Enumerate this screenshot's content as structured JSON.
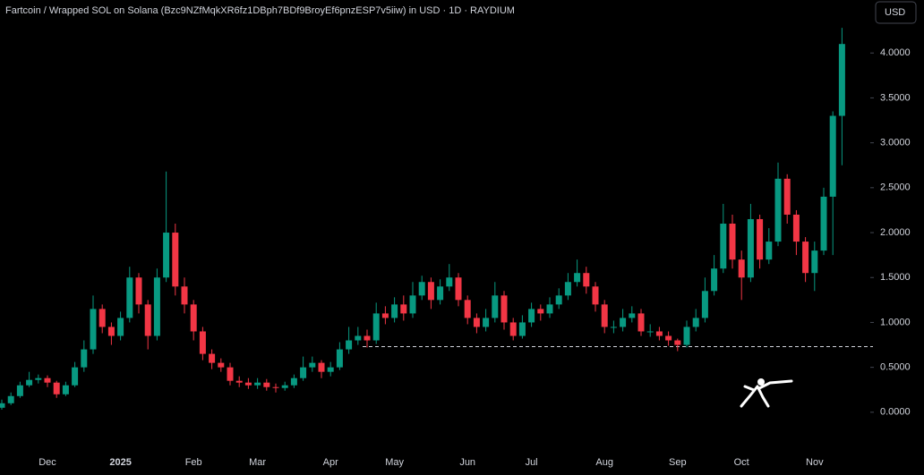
{
  "chart_data": {
    "type": "candlestick",
    "title": "Fartcoin / Wrapped SOL on Solana (Bzc9NZfMqkXR6fz1DBph7BDf9BroyEf6pnzESP7v5iiw) in USD · 1D · RAYDIUM",
    "currency": "USD",
    "up_color": "#089981",
    "down_color": "#f23645",
    "ylim": [
      -0.39,
      4.59
    ],
    "yticks": [
      {
        "value": 0,
        "label": "0.0000"
      },
      {
        "value": 0.5,
        "label": "0.5000"
      },
      {
        "value": 1,
        "label": "1.0000"
      },
      {
        "value": 1.5,
        "label": "1.5000"
      },
      {
        "value": 2,
        "label": "2.0000"
      },
      {
        "value": 2.5,
        "label": "2.5000"
      },
      {
        "value": 3,
        "label": "3.0000"
      },
      {
        "value": 3.5,
        "label": "3.5000"
      },
      {
        "value": 4,
        "label": "4.0000"
      }
    ],
    "price_line": 0.73,
    "categories": [
      null,
      null,
      null,
      null,
      null,
      "Dec",
      null,
      null,
      null,
      null,
      null,
      null,
      null,
      "2025",
      null,
      null,
      null,
      null,
      null,
      null,
      null,
      "Feb",
      null,
      null,
      null,
      null,
      null,
      null,
      "Mar",
      null,
      null,
      null,
      null,
      null,
      null,
      null,
      "Apr",
      null,
      null,
      null,
      null,
      null,
      null,
      "May",
      null,
      null,
      null,
      null,
      null,
      null,
      null,
      "Jun",
      null,
      null,
      null,
      null,
      null,
      null,
      "Jul",
      null,
      null,
      null,
      null,
      null,
      null,
      null,
      "Aug",
      null,
      null,
      null,
      null,
      null,
      null,
      null,
      "Sep",
      null,
      null,
      null,
      null,
      null,
      null,
      "Oct",
      null,
      null,
      null,
      null,
      null,
      null,
      null,
      "Nov",
      null,
      null,
      null
    ],
    "open": [
      0.05,
      0.1,
      0.18,
      0.3,
      0.36,
      0.38,
      0.33,
      0.2,
      0.3,
      0.5,
      0.7,
      1.15,
      0.95,
      0.85,
      1.05,
      1.5,
      1.2,
      0.85,
      1.5,
      2.0,
      1.4,
      1.2,
      0.9,
      0.65,
      0.55,
      0.5,
      0.35,
      0.33,
      0.3,
      0.33,
      0.28,
      0.27,
      0.3,
      0.38,
      0.5,
      0.55,
      0.45,
      0.5,
      0.7,
      0.8,
      0.85,
      0.8,
      1.1,
      1.05,
      1.2,
      1.1,
      1.3,
      1.45,
      1.25,
      1.4,
      1.5,
      1.25,
      1.05,
      0.95,
      1.05,
      1.3,
      1.0,
      0.85,
      1.0,
      1.15,
      1.1,
      1.2,
      1.3,
      1.45,
      1.55,
      1.4,
      1.2,
      0.95,
      0.95,
      1.05,
      1.1,
      0.9,
      0.9,
      0.85,
      0.8,
      0.75,
      0.95,
      1.05,
      1.35,
      1.6,
      2.1,
      1.7,
      1.5,
      2.15,
      1.7,
      1.9,
      2.6,
      2.2,
      1.9,
      1.55,
      1.8,
      2.4,
      3.3
    ],
    "high": [
      0.14,
      0.22,
      0.34,
      0.45,
      0.42,
      0.41,
      0.35,
      0.34,
      0.56,
      0.8,
      1.3,
      1.2,
      1.0,
      1.12,
      1.62,
      1.55,
      1.25,
      1.6,
      2.68,
      2.1,
      1.5,
      1.25,
      0.95,
      0.7,
      0.6,
      0.55,
      0.4,
      0.38,
      0.38,
      0.37,
      0.32,
      0.34,
      0.42,
      0.62,
      0.62,
      0.58,
      0.56,
      0.78,
      0.95,
      0.95,
      0.92,
      1.22,
      1.18,
      1.28,
      1.3,
      1.45,
      1.52,
      1.5,
      1.48,
      1.65,
      1.55,
      1.3,
      1.1,
      1.15,
      1.45,
      1.35,
      1.05,
      1.08,
      1.22,
      1.2,
      1.28,
      1.38,
      1.55,
      1.7,
      1.62,
      1.45,
      1.25,
      1.02,
      1.15,
      1.18,
      1.15,
      0.98,
      0.95,
      0.9,
      0.82,
      1.02,
      1.15,
      1.5,
      1.75,
      2.32,
      2.2,
      1.8,
      2.32,
      2.2,
      2.05,
      2.78,
      2.65,
      2.25,
      1.95,
      1.9,
      2.5,
      3.35,
      4.28
    ],
    "low": [
      0.03,
      0.08,
      0.16,
      0.28,
      0.32,
      0.28,
      0.16,
      0.18,
      0.28,
      0.45,
      0.65,
      0.88,
      0.75,
      0.8,
      1.0,
      1.1,
      0.7,
      0.8,
      1.45,
      1.3,
      1.1,
      0.8,
      0.58,
      0.48,
      0.45,
      0.3,
      0.28,
      0.26,
      0.26,
      0.24,
      0.22,
      0.24,
      0.27,
      0.35,
      0.45,
      0.38,
      0.4,
      0.47,
      0.65,
      0.75,
      0.72,
      0.76,
      0.98,
      1.0,
      1.02,
      1.05,
      1.25,
      1.15,
      1.2,
      1.35,
      1.18,
      0.98,
      0.88,
      0.9,
      1.0,
      0.92,
      0.8,
      0.82,
      0.95,
      1.02,
      1.05,
      1.15,
      1.25,
      1.4,
      1.32,
      1.12,
      0.88,
      0.88,
      0.9,
      1.0,
      0.85,
      0.84,
      0.8,
      0.74,
      0.68,
      0.72,
      0.9,
      1.0,
      1.3,
      1.55,
      1.6,
      1.25,
      1.45,
      1.6,
      1.65,
      1.85,
      2.1,
      1.75,
      1.45,
      1.35,
      1.75,
      1.75,
      2.75
    ],
    "close": [
      0.1,
      0.18,
      0.3,
      0.36,
      0.38,
      0.33,
      0.2,
      0.3,
      0.5,
      0.7,
      1.15,
      0.95,
      0.85,
      1.05,
      1.5,
      1.2,
      0.85,
      1.5,
      2.0,
      1.4,
      1.2,
      0.9,
      0.65,
      0.55,
      0.5,
      0.35,
      0.33,
      0.3,
      0.33,
      0.28,
      0.27,
      0.3,
      0.38,
      0.5,
      0.55,
      0.45,
      0.5,
      0.7,
      0.8,
      0.85,
      0.8,
      1.1,
      1.05,
      1.2,
      1.1,
      1.3,
      1.45,
      1.25,
      1.4,
      1.5,
      1.25,
      1.05,
      0.95,
      1.05,
      1.3,
      1.0,
      0.85,
      1.0,
      1.15,
      1.1,
      1.2,
      1.3,
      1.45,
      1.55,
      1.4,
      1.2,
      0.95,
      0.95,
      1.05,
      1.1,
      0.9,
      0.9,
      0.85,
      0.8,
      0.75,
      0.95,
      1.05,
      1.35,
      1.6,
      2.1,
      1.7,
      1.5,
      2.15,
      1.7,
      1.9,
      2.6,
      2.2,
      1.9,
      1.55,
      1.8,
      2.4,
      3.3,
      4.1
    ]
  }
}
